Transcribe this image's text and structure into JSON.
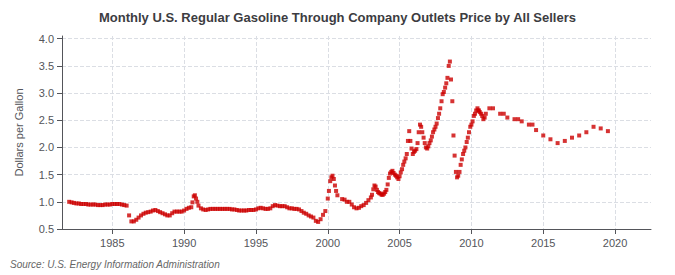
{
  "chart_data": {
    "type": "scatter",
    "title": "Monthly U.S. Regular Gasoline Through Company Outlets Price by All Sellers",
    "ylabel": "Dollars per Gallon",
    "annotation": "Source: U.S. Energy Information Administration",
    "color": "#CC0000",
    "marker": "square",
    "grid": true,
    "xlim": [
      1981.5,
      2022.5
    ],
    "ylim": [
      0.5,
      4.05
    ],
    "xticks": [
      1985,
      1990,
      1995,
      2000,
      2005,
      2010,
      2015,
      2020
    ],
    "yticks": [
      0.5,
      {
        "value": 1,
        "label": "1.0"
      },
      1.5,
      {
        "value": 2,
        "label": "2.0"
      },
      2.5,
      {
        "value": 3,
        "label": "3.0"
      },
      3.5,
      {
        "value": 4,
        "label": "4.0"
      }
    ],
    "x": [
      1982.0,
      1982.17,
      1982.33,
      1982.5,
      1982.67,
      1982.83,
      1983.0,
      1983.17,
      1983.33,
      1983.5,
      1983.67,
      1983.83,
      1984.0,
      1984.17,
      1984.33,
      1984.5,
      1984.67,
      1984.83,
      1985.0,
      1985.17,
      1985.33,
      1985.5,
      1985.67,
      1985.83,
      1986.0,
      1986.17,
      1986.33,
      1986.5,
      1986.67,
      1986.83,
      1987.0,
      1987.17,
      1987.33,
      1987.5,
      1987.67,
      1987.83,
      1988.0,
      1988.17,
      1988.33,
      1988.5,
      1988.67,
      1988.83,
      1989.0,
      1989.17,
      1989.33,
      1989.5,
      1989.67,
      1989.83,
      1990.0,
      1990.17,
      1990.33,
      1990.5,
      1990.58,
      1990.67,
      1990.75,
      1990.83,
      1990.92,
      1991.0,
      1991.17,
      1991.33,
      1991.5,
      1991.67,
      1991.83,
      1992.0,
      1992.17,
      1992.33,
      1992.5,
      1992.67,
      1992.83,
      1993.0,
      1993.17,
      1993.33,
      1993.5,
      1993.67,
      1993.83,
      1994.0,
      1994.17,
      1994.33,
      1994.5,
      1994.67,
      1994.83,
      1995.0,
      1995.17,
      1995.33,
      1995.5,
      1995.67,
      1995.83,
      1996.0,
      1996.17,
      1996.33,
      1996.5,
      1996.67,
      1996.83,
      1997.0,
      1997.17,
      1997.33,
      1997.5,
      1997.67,
      1997.83,
      1998.0,
      1998.17,
      1998.33,
      1998.5,
      1998.67,
      1998.83,
      1999.0,
      1999.17,
      1999.33,
      1999.5,
      1999.67,
      1999.83,
      2000.0,
      2000.08,
      2000.17,
      2000.25,
      2000.33,
      2000.42,
      2000.5,
      2000.58,
      2000.67,
      2001.0,
      2001.17,
      2001.33,
      2001.5,
      2001.67,
      2001.83,
      2002.0,
      2002.17,
      2002.33,
      2002.5,
      2002.67,
      2002.83,
      2003.0,
      2003.08,
      2003.17,
      2003.25,
      2003.33,
      2003.42,
      2003.5,
      2003.58,
      2003.67,
      2003.75,
      2003.83,
      2003.92,
      2004.0,
      2004.08,
      2004.17,
      2004.25,
      2004.33,
      2004.42,
      2004.5,
      2004.58,
      2004.67,
      2004.75,
      2004.83,
      2004.92,
      2005.0,
      2005.08,
      2005.17,
      2005.25,
      2005.33,
      2005.42,
      2005.5,
      2005.58,
      2005.67,
      2005.75,
      2005.83,
      2005.92,
      2006.0,
      2006.08,
      2006.17,
      2006.25,
      2006.33,
      2006.42,
      2006.5,
      2006.58,
      2006.67,
      2006.75,
      2006.83,
      2006.92,
      2007.0,
      2007.08,
      2007.17,
      2007.25,
      2007.33,
      2007.42,
      2007.5,
      2007.58,
      2007.67,
      2007.75,
      2007.83,
      2007.92,
      2008.0,
      2008.08,
      2008.17,
      2008.25,
      2008.33,
      2008.42,
      2008.5,
      2008.58,
      2008.67,
      2008.75,
      2008.83,
      2008.92,
      2009.0,
      2009.08,
      2009.17,
      2009.25,
      2009.33,
      2009.42,
      2009.5,
      2009.58,
      2009.67,
      2009.75,
      2009.83,
      2009.92,
      2010.0,
      2010.08,
      2010.17,
      2010.25,
      2010.33,
      2010.42,
      2010.5,
      2010.58,
      2010.67,
      2010.75,
      2010.83,
      2010.92,
      2011.25,
      2012.25,
      2013.25,
      2014.25,
      2010.5,
      2011.0,
      2011.5,
      2012.0,
      2012.5,
      2013.0,
      2013.5,
      2014.0,
      2014.5,
      2015.0,
      2015.5,
      2016.0,
      2016.5,
      2017.0,
      2017.5,
      2018.0,
      2018.5,
      2019.0,
      2019.5
    ],
    "values": [
      1.0,
      0.99,
      0.98,
      0.97,
      0.97,
      0.96,
      0.96,
      0.96,
      0.95,
      0.95,
      0.95,
      0.95,
      0.94,
      0.94,
      0.94,
      0.95,
      0.95,
      0.95,
      0.96,
      0.96,
      0.96,
      0.96,
      0.95,
      0.94,
      0.93,
      0.75,
      0.64,
      0.64,
      0.67,
      0.71,
      0.75,
      0.78,
      0.8,
      0.81,
      0.82,
      0.84,
      0.85,
      0.83,
      0.81,
      0.79,
      0.77,
      0.75,
      0.75,
      0.79,
      0.82,
      0.82,
      0.82,
      0.82,
      0.84,
      0.87,
      0.89,
      0.9,
      0.99,
      1.1,
      1.12,
      1.06,
      1.0,
      0.93,
      0.88,
      0.86,
      0.85,
      0.86,
      0.87,
      0.87,
      0.87,
      0.87,
      0.87,
      0.87,
      0.87,
      0.87,
      0.87,
      0.86,
      0.86,
      0.85,
      0.84,
      0.84,
      0.84,
      0.84,
      0.85,
      0.85,
      0.85,
      0.86,
      0.88,
      0.89,
      0.88,
      0.87,
      0.87,
      0.88,
      0.92,
      0.94,
      0.93,
      0.92,
      0.92,
      0.92,
      0.9,
      0.88,
      0.88,
      0.87,
      0.87,
      0.86,
      0.83,
      0.8,
      0.78,
      0.75,
      0.73,
      0.71,
      0.65,
      0.63,
      0.68,
      0.76,
      0.83,
      1.06,
      1.2,
      1.38,
      1.45,
      1.48,
      1.42,
      1.3,
      1.2,
      1.12,
      1.05,
      1.04,
      1.0,
      1.0,
      0.95,
      0.9,
      0.88,
      0.89,
      0.92,
      0.94,
      0.98,
      1.03,
      1.08,
      1.13,
      1.23,
      1.3,
      1.28,
      1.22,
      1.18,
      1.16,
      1.15,
      1.13,
      1.13,
      1.15,
      1.18,
      1.22,
      1.32,
      1.44,
      1.52,
      1.55,
      1.57,
      1.53,
      1.5,
      1.48,
      1.45,
      1.42,
      1.47,
      1.54,
      1.6,
      1.68,
      1.74,
      1.8,
      1.88,
      2.12,
      2.3,
      2.12,
      1.98,
      1.88,
      1.92,
      1.94,
      1.97,
      2.08,
      2.28,
      2.42,
      2.38,
      2.28,
      2.18,
      2.08,
      2.0,
      1.98,
      2.02,
      2.08,
      2.13,
      2.2,
      2.28,
      2.33,
      2.38,
      2.44,
      2.54,
      2.62,
      2.72,
      2.85,
      2.98,
      3.02,
      3.1,
      3.18,
      3.28,
      3.5,
      3.58,
      3.25,
      2.85,
      2.22,
      1.85,
      1.55,
      1.45,
      1.48,
      1.55,
      1.68,
      1.78,
      1.88,
      1.94,
      2.0,
      2.1,
      2.18,
      2.28,
      2.38,
      2.42,
      2.48,
      2.58,
      2.62,
      2.68,
      2.72,
      2.68,
      2.65,
      2.62,
      2.58,
      2.52,
      2.55,
      2.72,
      2.62,
      2.52,
      2.42,
      2.68,
      2.62,
      2.72,
      2.62,
      2.55,
      2.52,
      2.48,
      2.42,
      2.32,
      2.22,
      2.15,
      2.08,
      2.12,
      2.18,
      2.22,
      2.28,
      2.38,
      2.35,
      2.3
    ]
  }
}
